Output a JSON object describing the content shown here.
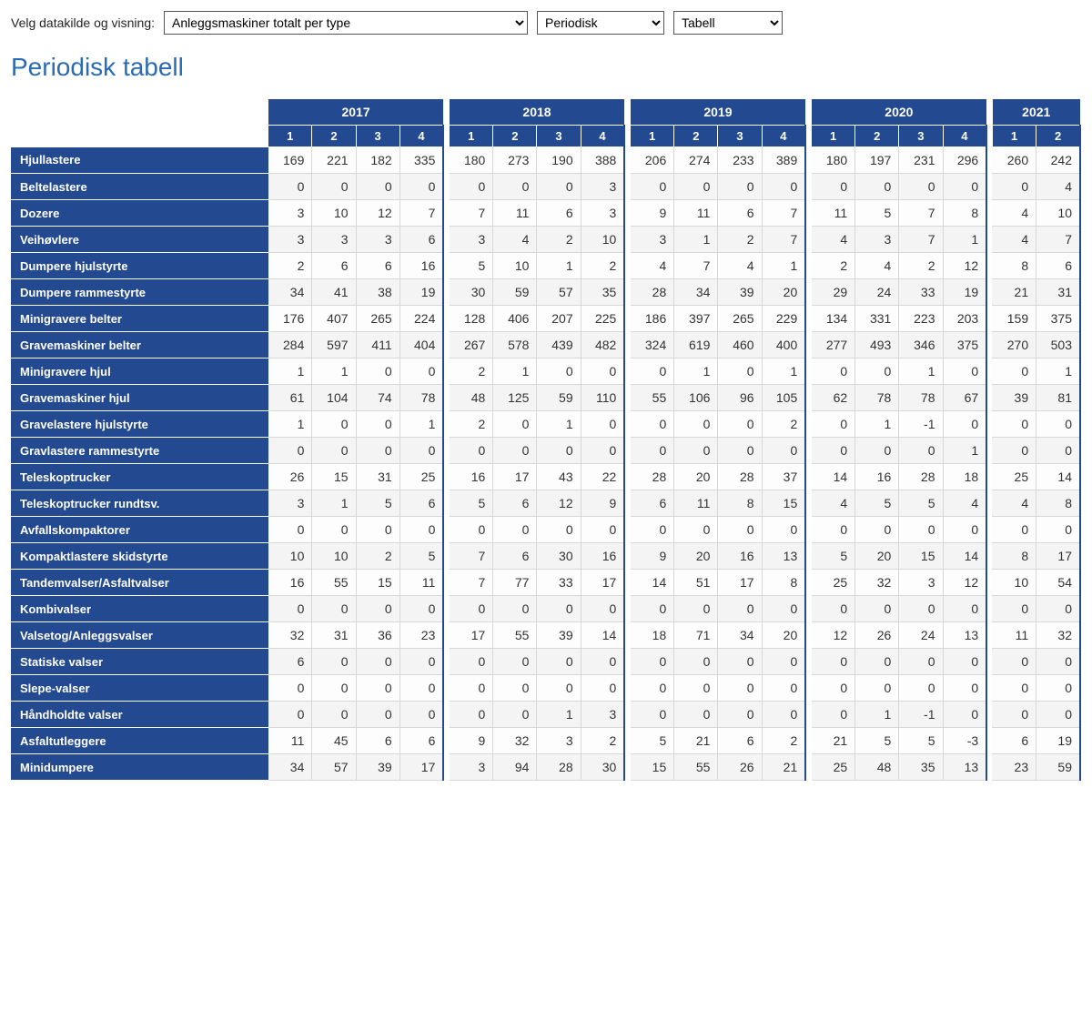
{
  "controls": {
    "label": "Velg datakilde og visning:",
    "datasource": "Anleggsmaskiner totalt per type",
    "period": "Periodisk",
    "view": "Tabell"
  },
  "title": "Periodisk tabell",
  "colors": {
    "header_bg": "#234a91",
    "header_fg": "#ffffff",
    "title_fg": "#2b6bb5"
  },
  "years": [
    {
      "label": "2017",
      "quarters": [
        "1",
        "2",
        "3",
        "4"
      ]
    },
    {
      "label": "2018",
      "quarters": [
        "1",
        "2",
        "3",
        "4"
      ]
    },
    {
      "label": "2019",
      "quarters": [
        "1",
        "2",
        "3",
        "4"
      ]
    },
    {
      "label": "2020",
      "quarters": [
        "1",
        "2",
        "3",
        "4"
      ]
    },
    {
      "label": "2021",
      "quarters": [
        "1",
        "2"
      ]
    }
  ],
  "rows": [
    {
      "label": "Hjullastere",
      "v": [
        169,
        221,
        182,
        335,
        180,
        273,
        190,
        388,
        206,
        274,
        233,
        389,
        180,
        197,
        231,
        296,
        260,
        242
      ]
    },
    {
      "label": "Beltelastere",
      "v": [
        0,
        0,
        0,
        0,
        0,
        0,
        0,
        3,
        0,
        0,
        0,
        0,
        0,
        0,
        0,
        0,
        0,
        4
      ]
    },
    {
      "label": "Dozere",
      "v": [
        3,
        10,
        12,
        7,
        7,
        11,
        6,
        3,
        9,
        11,
        6,
        7,
        11,
        5,
        7,
        8,
        4,
        10
      ]
    },
    {
      "label": "Veihøvlere",
      "v": [
        3,
        3,
        3,
        6,
        3,
        4,
        2,
        10,
        3,
        1,
        2,
        7,
        4,
        3,
        7,
        1,
        4,
        7
      ]
    },
    {
      "label": "Dumpere hjulstyrte",
      "v": [
        2,
        6,
        6,
        16,
        5,
        10,
        1,
        2,
        4,
        7,
        4,
        1,
        2,
        4,
        2,
        12,
        8,
        6
      ]
    },
    {
      "label": "Dumpere rammestyrte",
      "v": [
        34,
        41,
        38,
        19,
        30,
        59,
        57,
        35,
        28,
        34,
        39,
        20,
        29,
        24,
        33,
        19,
        21,
        31
      ]
    },
    {
      "label": "Minigravere belter",
      "v": [
        176,
        407,
        265,
        224,
        128,
        406,
        207,
        225,
        186,
        397,
        265,
        229,
        134,
        331,
        223,
        203,
        159,
        375
      ]
    },
    {
      "label": "Gravemaskiner belter",
      "v": [
        284,
        597,
        411,
        404,
        267,
        578,
        439,
        482,
        324,
        619,
        460,
        400,
        277,
        493,
        346,
        375,
        270,
        503
      ]
    },
    {
      "label": "Minigravere hjul",
      "v": [
        1,
        1,
        0,
        0,
        2,
        1,
        0,
        0,
        0,
        1,
        0,
        1,
        0,
        0,
        1,
        0,
        0,
        1
      ]
    },
    {
      "label": "Gravemaskiner hjul",
      "v": [
        61,
        104,
        74,
        78,
        48,
        125,
        59,
        110,
        55,
        106,
        96,
        105,
        62,
        78,
        78,
        67,
        39,
        81
      ]
    },
    {
      "label": "Gravelastere hjulstyrte",
      "v": [
        1,
        0,
        0,
        1,
        2,
        0,
        1,
        0,
        0,
        0,
        0,
        2,
        0,
        1,
        -1,
        0,
        0,
        0
      ]
    },
    {
      "label": "Gravlastere rammestyrte",
      "v": [
        0,
        0,
        0,
        0,
        0,
        0,
        0,
        0,
        0,
        0,
        0,
        0,
        0,
        0,
        0,
        1,
        0,
        0
      ]
    },
    {
      "label": "Teleskoptrucker",
      "v": [
        26,
        15,
        31,
        25,
        16,
        17,
        43,
        22,
        28,
        20,
        28,
        37,
        14,
        16,
        28,
        18,
        25,
        14
      ]
    },
    {
      "label": "Teleskoptrucker rundtsv.",
      "v": [
        3,
        1,
        5,
        6,
        5,
        6,
        12,
        9,
        6,
        11,
        8,
        15,
        4,
        5,
        5,
        4,
        4,
        8
      ]
    },
    {
      "label": "Avfallskompaktorer",
      "v": [
        0,
        0,
        0,
        0,
        0,
        0,
        0,
        0,
        0,
        0,
        0,
        0,
        0,
        0,
        0,
        0,
        0,
        0
      ]
    },
    {
      "label": "Kompaktlastere skidstyrte",
      "v": [
        10,
        10,
        2,
        5,
        7,
        6,
        30,
        16,
        9,
        20,
        16,
        13,
        5,
        20,
        15,
        14,
        8,
        17
      ]
    },
    {
      "label": "Tandemvalser/Asfaltvalser",
      "v": [
        16,
        55,
        15,
        11,
        7,
        77,
        33,
        17,
        14,
        51,
        17,
        8,
        25,
        32,
        3,
        12,
        10,
        54
      ]
    },
    {
      "label": "Kombivalser",
      "v": [
        0,
        0,
        0,
        0,
        0,
        0,
        0,
        0,
        0,
        0,
        0,
        0,
        0,
        0,
        0,
        0,
        0,
        0
      ]
    },
    {
      "label": "Valsetog/Anleggsvalser",
      "v": [
        32,
        31,
        36,
        23,
        17,
        55,
        39,
        14,
        18,
        71,
        34,
        20,
        12,
        26,
        24,
        13,
        11,
        32
      ]
    },
    {
      "label": "Statiske valser",
      "v": [
        6,
        0,
        0,
        0,
        0,
        0,
        0,
        0,
        0,
        0,
        0,
        0,
        0,
        0,
        0,
        0,
        0,
        0
      ]
    },
    {
      "label": "Slepe-valser",
      "v": [
        0,
        0,
        0,
        0,
        0,
        0,
        0,
        0,
        0,
        0,
        0,
        0,
        0,
        0,
        0,
        0,
        0,
        0
      ]
    },
    {
      "label": "Håndholdte valser",
      "v": [
        0,
        0,
        0,
        0,
        0,
        0,
        1,
        3,
        0,
        0,
        0,
        0,
        0,
        1,
        -1,
        0,
        0,
        0
      ]
    },
    {
      "label": "Asfaltutleggere",
      "v": [
        11,
        45,
        6,
        6,
        9,
        32,
        3,
        2,
        5,
        21,
        6,
        2,
        21,
        5,
        5,
        -3,
        6,
        19
      ]
    },
    {
      "label": "Minidumpere",
      "v": [
        34,
        57,
        39,
        17,
        3,
        94,
        28,
        30,
        15,
        55,
        26,
        21,
        25,
        48,
        35,
        13,
        23,
        59
      ]
    }
  ]
}
